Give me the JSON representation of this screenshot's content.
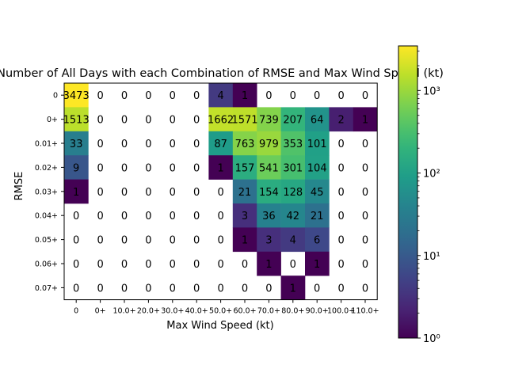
{
  "chart_data": {
    "type": "heatmap",
    "title": "Number of All Days with each Combination of RMSE and Max Wind Speed (kt)",
    "xlabel": "Max Wind Speed (kt)",
    "ylabel": "RMSE",
    "x_categories": [
      "0",
      "0+",
      "10.0+",
      "20.0+",
      "30.0+",
      "40.0+",
      "50.0+",
      "60.0+",
      "70.0+",
      "80.0+",
      "90.0+",
      "100.0+",
      "110.0+"
    ],
    "y_categories": [
      "0",
      "0+",
      "0.01+",
      "0.02+",
      "0.03+",
      "0.04+",
      "0.05+",
      "0.06+",
      "0.07+"
    ],
    "values": [
      [
        3473,
        0,
        0,
        0,
        0,
        0,
        4,
        1,
        0,
        0,
        0,
        0,
        0
      ],
      [
        1513,
        0,
        0,
        0,
        0,
        0,
        1662,
        1571,
        739,
        207,
        64,
        2,
        1
      ],
      [
        33,
        0,
        0,
        0,
        0,
        0,
        87,
        763,
        979,
        353,
        101,
        0,
        0
      ],
      [
        9,
        0,
        0,
        0,
        0,
        0,
        1,
        157,
        541,
        301,
        104,
        0,
        0
      ],
      [
        1,
        0,
        0,
        0,
        0,
        0,
        0,
        21,
        154,
        128,
        45,
        0,
        0
      ],
      [
        0,
        0,
        0,
        0,
        0,
        0,
        0,
        3,
        36,
        42,
        21,
        0,
        0
      ],
      [
        0,
        0,
        0,
        0,
        0,
        0,
        0,
        1,
        3,
        4,
        6,
        0,
        0
      ],
      [
        0,
        0,
        0,
        0,
        0,
        0,
        0,
        0,
        1,
        0,
        1,
        0,
        0
      ],
      [
        0,
        0,
        0,
        0,
        0,
        0,
        0,
        0,
        0,
        1,
        0,
        0,
        0
      ]
    ],
    "color_scale": "log",
    "colormap": "viridis",
    "zero_color": "#ffffff",
    "colorbar": {
      "range": [
        1,
        3473
      ],
      "tick_labels": [
        "10⁰",
        "10¹",
        "10²",
        "10³"
      ]
    },
    "grid": false,
    "legend": "colorbar-right"
  }
}
